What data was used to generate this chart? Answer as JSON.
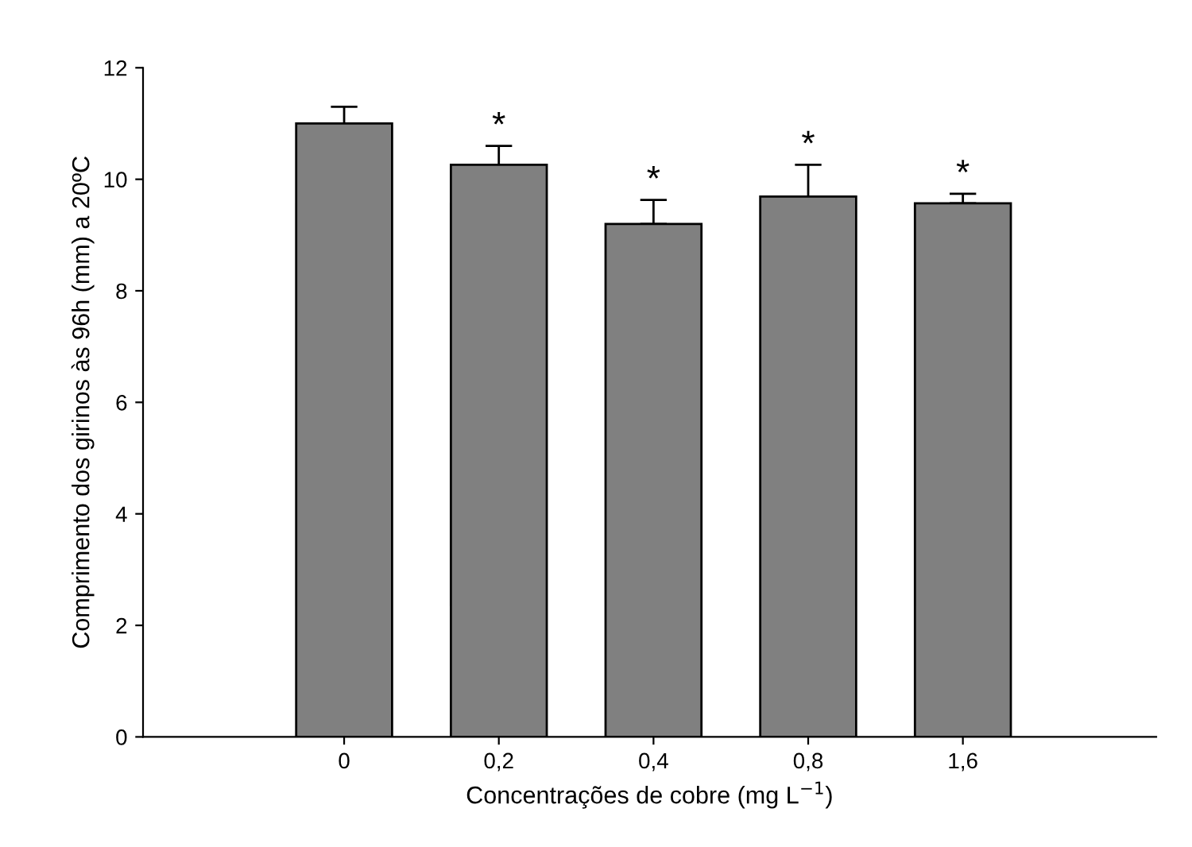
{
  "chart_data": {
    "type": "bar",
    "xlabel": "Concentrações de cobre (mg L$^{−1}$)",
    "ylabel": "Comprimento dos girinos às 96h (mm) a 20ºC",
    "categories": [
      "0",
      "0,2",
      "0,4",
      "0,8",
      "1,6"
    ],
    "values": [
      11.0,
      10.26,
      9.2,
      9.69,
      9.57
    ],
    "errors": [
      [
        11.0,
        11.3
      ],
      [
        10.26,
        10.6
      ],
      [
        9.2,
        9.63
      ],
      [
        9.69,
        10.26
      ],
      [
        9.57,
        9.74
      ]
    ],
    "color": "#808080",
    "ylim": [
      0,
      12
    ],
    "yticks": [
      0,
      2,
      4,
      6,
      8,
      10,
      12
    ],
    "grid": false,
    "annotations": [
      {
        "text": "*",
        "x": "0,2",
        "y": 10.6
      },
      {
        "text": "*",
        "x": "0,4",
        "y": 9.63
      },
      {
        "text": "*",
        "x": "0,8",
        "y": 10.26
      },
      {
        "text": "*",
        "x": "1,6",
        "y": 9.74
      }
    ]
  }
}
